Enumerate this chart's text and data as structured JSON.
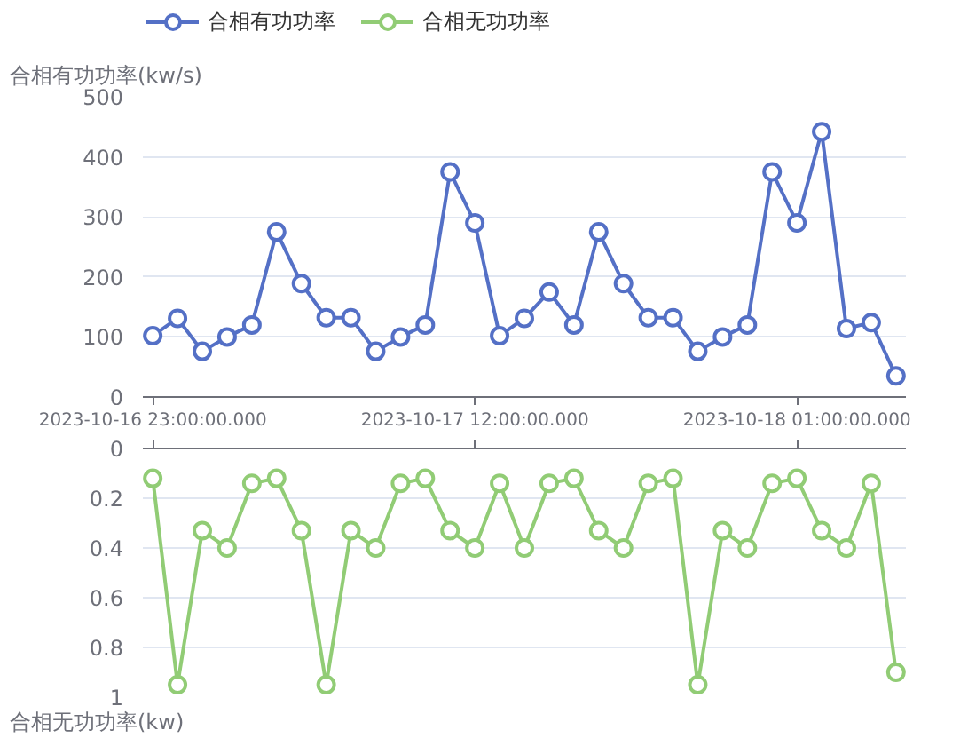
{
  "chart_data": [
    {
      "type": "line",
      "ylabel": "合相有功功率(kw/s)",
      "categories": [
        "2023-10-16 23:00:00.000",
        null,
        null,
        null,
        null,
        null,
        null,
        null,
        null,
        null,
        null,
        null,
        null,
        "2023-10-17 12:00:00.000",
        null,
        null,
        null,
        null,
        null,
        null,
        null,
        null,
        null,
        null,
        null,
        null,
        "2023-10-18 01:00:00.000",
        null,
        null,
        null,
        null
      ],
      "series": [
        {
          "name": "合相有功功率",
          "color": "#5470c6",
          "values": [
            102,
            131,
            76,
            100,
            120,
            275,
            189,
            132,
            132,
            76,
            100,
            120,
            375,
            290,
            102,
            131,
            175,
            120,
            275,
            189,
            132,
            132,
            76,
            100,
            120,
            375,
            290,
            442,
            114,
            124,
            35
          ]
        }
      ],
      "ylim": [
        0,
        500
      ],
      "yticks": [
        0,
        100,
        200,
        300,
        400,
        500
      ],
      "grid": "y",
      "legend": "top",
      "marker": "circle",
      "tick_labels": "y"
    },
    {
      "type": "line",
      "ylabel": "合相无功功率(kw)",
      "categories": [
        "2023-10-16 23:00:00.000",
        null,
        null,
        null,
        null,
        null,
        null,
        null,
        null,
        null,
        null,
        null,
        null,
        "2023-10-17 12:00:00.000",
        null,
        null,
        null,
        null,
        null,
        null,
        null,
        null,
        null,
        null,
        null,
        null,
        "2023-10-18 01:00:00.000",
        null,
        null,
        null,
        null
      ],
      "series": [
        {
          "name": "合相无功功率",
          "color": "#91cc75",
          "values": [
            0.12,
            0.95,
            0.33,
            0.4,
            0.14,
            0.12,
            0.33,
            0.95,
            0.33,
            0.4,
            0.14,
            0.12,
            0.33,
            0.4,
            0.14,
            0.4,
            0.14,
            0.12,
            0.33,
            0.4,
            0.14,
            0.12,
            0.95,
            0.33,
            0.4,
            0.14,
            0.12,
            0.33,
            0.4,
            0.14,
            0.9
          ]
        }
      ],
      "ylim": [
        1,
        0
      ],
      "yticks": [
        0,
        0.2,
        0.4,
        0.6,
        0.8,
        1
      ],
      "grid": "y",
      "legend": "top",
      "marker": "circle"
    }
  ]
}
